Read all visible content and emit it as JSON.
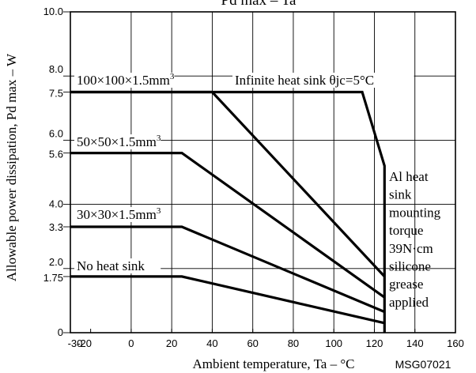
{
  "chart_data": {
    "type": "line",
    "title": "Pd max – Ta",
    "xlabel": "Ambient temperature, Ta – °C",
    "ylabel": "Allowable power dissipation, Pd max – W",
    "xlim": [
      -30,
      160
    ],
    "ylim": [
      0,
      10
    ],
    "x_ticks": [
      {
        "value": -30,
        "label": "-30"
      },
      {
        "value": -20,
        "label": "-20"
      },
      {
        "value": 0,
        "label": "0"
      },
      {
        "value": 20,
        "label": "20"
      },
      {
        "value": 40,
        "label": "40"
      },
      {
        "value": 60,
        "label": "60"
      },
      {
        "value": 80,
        "label": "80"
      },
      {
        "value": 100,
        "label": "100"
      },
      {
        "value": 120,
        "label": "120"
      },
      {
        "value": 140,
        "label": "140"
      },
      {
        "value": 160,
        "label": "160"
      }
    ],
    "y_ticks": [
      {
        "value": 0,
        "label": "0"
      },
      {
        "value": 1.75,
        "label": "1.75"
      },
      {
        "value": 2.0,
        "label": "2.0"
      },
      {
        "value": 3.3,
        "label": "3.3"
      },
      {
        "value": 4.0,
        "label": "4.0"
      },
      {
        "value": 5.6,
        "label": "5.6"
      },
      {
        "value": 6.0,
        "label": "6.0"
      },
      {
        "value": 7.5,
        "label": "7.5"
      },
      {
        "value": 8.0,
        "label": "8.0"
      },
      {
        "value": 10.0,
        "label": "10.0"
      }
    ],
    "grid": true,
    "series": [
      {
        "name": "Infinite heat sink θjc=5°C",
        "x": [
          -30,
          114,
          125,
          125
        ],
        "y": [
          7.5,
          7.5,
          5.2,
          0
        ]
      },
      {
        "name": "100×100×1.5mm³",
        "x": [
          -30,
          40,
          125
        ],
        "y": [
          7.5,
          7.5,
          1.75
        ]
      },
      {
        "name": "50×50×1.5mm³",
        "x": [
          -30,
          25,
          125
        ],
        "y": [
          5.6,
          5.6,
          1.1
        ]
      },
      {
        "name": "30×30×1.5mm³",
        "x": [
          -30,
          25,
          125
        ],
        "y": [
          3.3,
          3.3,
          0.65
        ]
      },
      {
        "name": "No heat sink",
        "x": [
          -30,
          25,
          125
        ],
        "y": [
          1.75,
          1.75,
          0.3
        ]
      }
    ],
    "annotations": [
      {
        "id": "infinite",
        "text": "Infinite heat sink θjc=5°C"
      },
      {
        "id": "hs100",
        "text": "100×100×1.5mm³"
      },
      {
        "id": "hs50",
        "text": "50×50×1.5mm³"
      },
      {
        "id": "hs30",
        "text": "30×30×1.5mm³"
      },
      {
        "id": "nohs",
        "text": "No heat sink"
      },
      {
        "id": "alnote",
        "lines": [
          "Al heat",
          "sink",
          "mounting",
          "torque",
          "39N·cm",
          "silicone",
          "grease",
          "applied"
        ]
      }
    ],
    "code": "MSG07021"
  }
}
